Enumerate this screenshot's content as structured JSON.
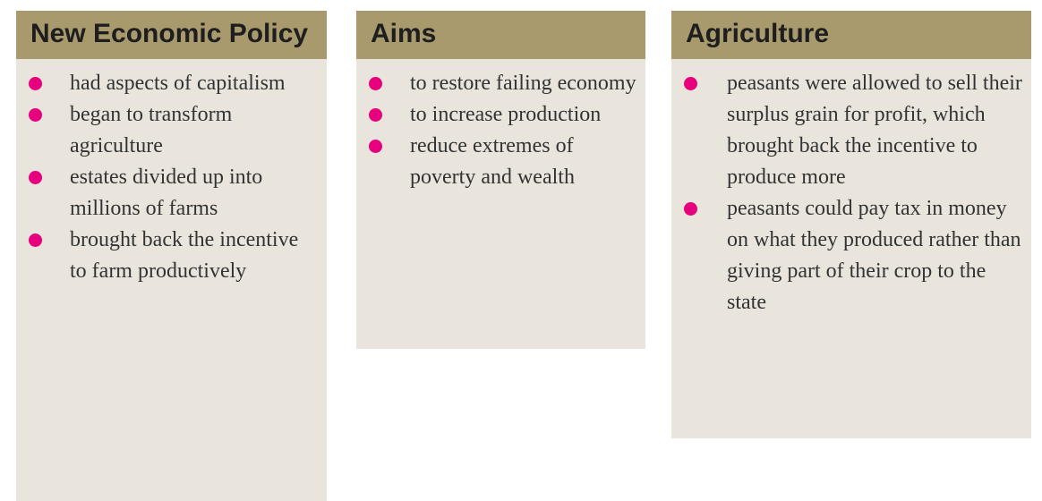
{
  "boxes": [
    {
      "title": "New Economic Policy",
      "items": [
        "had aspects of capitalism",
        "began to transform agriculture",
        "estates divided up into millions of farms",
        "brought back the incentive to farm productively"
      ]
    },
    {
      "title": "Aims",
      "items": [
        "to restore failing economy",
        "to increase production",
        "reduce extremes of poverty and wealth"
      ]
    },
    {
      "title": "Agriculture",
      "items": [
        "peasants were allowed to sell their surplus grain for profit, which brought back the incentive to produce more",
        "peasants could pay tax in money on what they produced rather than giving part of their crop to the state"
      ]
    }
  ]
}
